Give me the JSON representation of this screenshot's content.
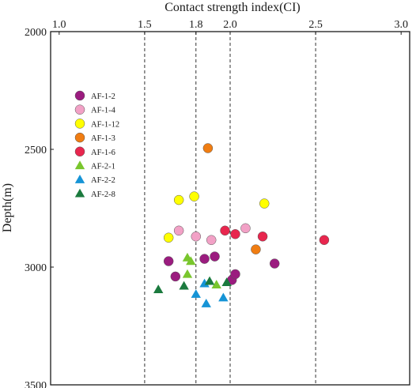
{
  "chart_data": {
    "type": "scatter",
    "title": "",
    "xlabel": "Contact strength index(CI)",
    "ylabel": "Depth(m)",
    "x_axis_position": "top",
    "y_axis_inverted": true,
    "xlim": [
      0.95,
      3.05
    ],
    "ylim": [
      2000,
      3500
    ],
    "x_ticks": [
      1.0,
      1.5,
      1.8,
      2.0,
      2.5,
      3.0
    ],
    "x_tick_labels": [
      "1.0",
      "1.5",
      "1.8",
      "2.0",
      "2.5",
      "3.0"
    ],
    "y_ticks": [
      2000,
      2500,
      3000,
      3500
    ],
    "y_tick_labels": [
      "2000",
      "2500",
      "3000",
      "3500"
    ],
    "reference_lines_x": [
      1.5,
      1.8,
      2.0,
      2.5
    ],
    "grid": false,
    "legend_position": "left-upper-inside",
    "series": [
      {
        "name": "AF-1-2",
        "marker": "circle",
        "color": "#9b1c7f",
        "points": [
          [
            1.64,
            2975
          ],
          [
            1.68,
            3040
          ],
          [
            1.85,
            2965
          ],
          [
            1.91,
            2955
          ],
          [
            2.01,
            3055
          ],
          [
            2.03,
            3030
          ],
          [
            2.26,
            2985
          ]
        ]
      },
      {
        "name": "AF-1-4",
        "marker": "circle",
        "color": "#f2a1c6",
        "points": [
          [
            1.7,
            2845
          ],
          [
            1.8,
            2870
          ],
          [
            1.89,
            2885
          ],
          [
            2.09,
            2835
          ]
        ]
      },
      {
        "name": "AF-1-12",
        "marker": "circle",
        "color": "#ffff00",
        "points": [
          [
            1.7,
            2715
          ],
          [
            1.79,
            2700
          ],
          [
            1.64,
            2875
          ],
          [
            2.2,
            2730
          ]
        ]
      },
      {
        "name": "AF-1-3",
        "marker": "circle",
        "color": "#f07d12",
        "points": [
          [
            1.87,
            2495
          ],
          [
            2.15,
            2925
          ]
        ]
      },
      {
        "name": "AF-1-6",
        "marker": "circle",
        "color": "#e8264e",
        "points": [
          [
            1.97,
            2845
          ],
          [
            2.03,
            2860
          ],
          [
            2.19,
            2870
          ],
          [
            2.55,
            2885
          ]
        ]
      },
      {
        "name": "AF-2-1",
        "marker": "triangle",
        "color": "#79c62d",
        "points": [
          [
            1.75,
            2960
          ],
          [
            1.77,
            2975
          ],
          [
            1.75,
            3030
          ],
          [
            1.92,
            3075
          ]
        ]
      },
      {
        "name": "AF-2-2",
        "marker": "triangle",
        "color": "#1694d6",
        "points": [
          [
            1.85,
            3070
          ],
          [
            1.8,
            3115
          ],
          [
            1.86,
            3155
          ],
          [
            1.96,
            3130
          ]
        ]
      },
      {
        "name": "AF-2-8",
        "marker": "triangle",
        "color": "#1b7a3e",
        "points": [
          [
            1.58,
            3095
          ],
          [
            1.73,
            3080
          ],
          [
            1.88,
            3060
          ],
          [
            1.98,
            3065
          ]
        ]
      }
    ]
  }
}
